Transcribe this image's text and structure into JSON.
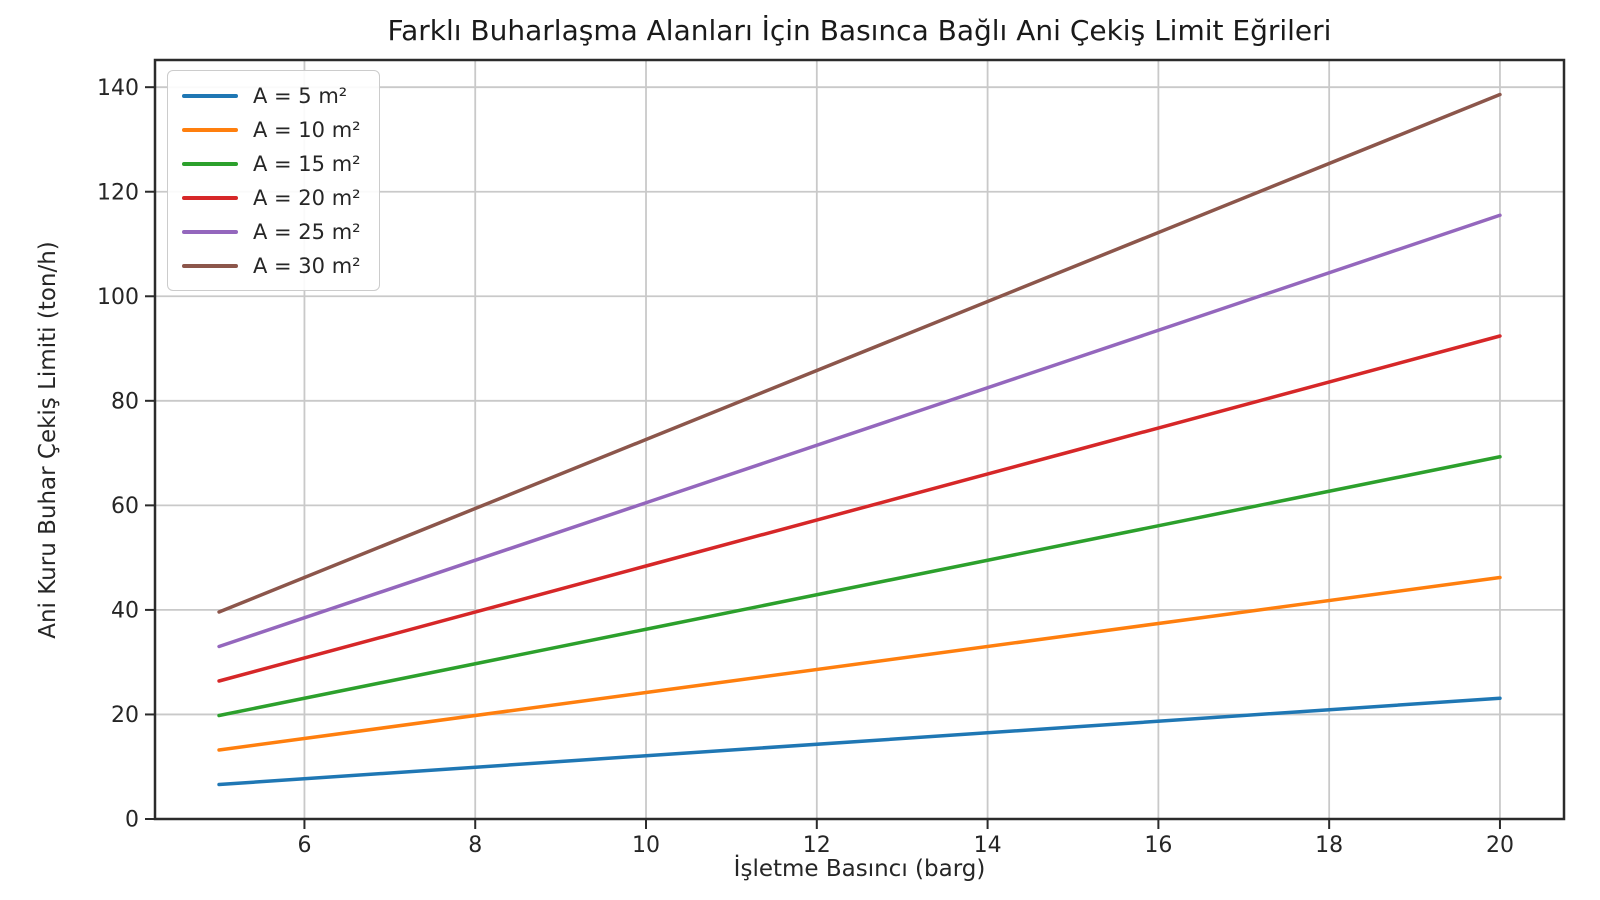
{
  "chart_data": {
    "type": "line",
    "title": "Farklı Buharlaşma Alanları İçin Basınca Bağlı Ani Çekiş Limit Eğrileri",
    "xlabel": "İşletme Basıncı (barg)",
    "ylabel": "Ani Kuru Buhar Çekiş Limiti (ton/h)",
    "x": [
      5,
      10,
      15,
      20
    ],
    "series": [
      {
        "name": "A = 5 m²",
        "color": "#1f77b4",
        "values": [
          6.6,
          12.1,
          17.6,
          23.1
        ]
      },
      {
        "name": "A = 10 m²",
        "color": "#ff7f0e",
        "values": [
          13.2,
          24.2,
          35.2,
          46.2
        ]
      },
      {
        "name": "A = 15 m²",
        "color": "#2ca02c",
        "values": [
          19.8,
          36.3,
          52.8,
          69.3
        ]
      },
      {
        "name": "A = 20 m²",
        "color": "#d62728",
        "values": [
          26.4,
          48.4,
          70.4,
          92.4
        ]
      },
      {
        "name": "A = 25 m²",
        "color": "#9467bd",
        "values": [
          33.0,
          60.5,
          88.0,
          115.5
        ]
      },
      {
        "name": "A = 30 m²",
        "color": "#8c564b",
        "values": [
          39.6,
          72.6,
          105.6,
          138.6
        ]
      }
    ],
    "xticks": [
      6,
      8,
      10,
      12,
      14,
      16,
      18,
      20
    ],
    "yticks": [
      0,
      20,
      40,
      60,
      80,
      100,
      120,
      140
    ],
    "xlim": [
      4.25,
      20.75
    ],
    "ylim": [
      0,
      145.2
    ],
    "grid": true,
    "legend_position": "upper left"
  }
}
